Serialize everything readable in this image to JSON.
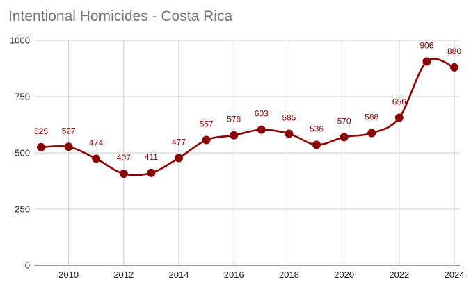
{
  "chart_data": {
    "type": "line",
    "title": "Intentional Homicides - Costa Rica",
    "xlabel": "",
    "ylabel": "",
    "x": [
      2009,
      2010,
      2011,
      2012,
      2013,
      2014,
      2015,
      2016,
      2017,
      2018,
      2019,
      2020,
      2021,
      2022,
      2023,
      2024
    ],
    "series": [
      {
        "name": "Intentional Homicides",
        "color": "#8b0000",
        "values": [
          525,
          527,
          474,
          407,
          411,
          477,
          557,
          578,
          603,
          585,
          536,
          570,
          588,
          656,
          906,
          880
        ]
      }
    ],
    "x_ticks": [
      "2010",
      "2012",
      "2014",
      "2016",
      "2018",
      "2020",
      "2022",
      "2024"
    ],
    "y_ticks": [
      "0",
      "250",
      "500",
      "750",
      "1000"
    ],
    "ylim": [
      0,
      1000
    ],
    "xlim": [
      2009,
      2024
    ],
    "grid": true,
    "legend": "none",
    "colors": {
      "line": "#8b0000",
      "grid": "#cccccc",
      "axis": "#333333",
      "title": "#757575"
    }
  }
}
